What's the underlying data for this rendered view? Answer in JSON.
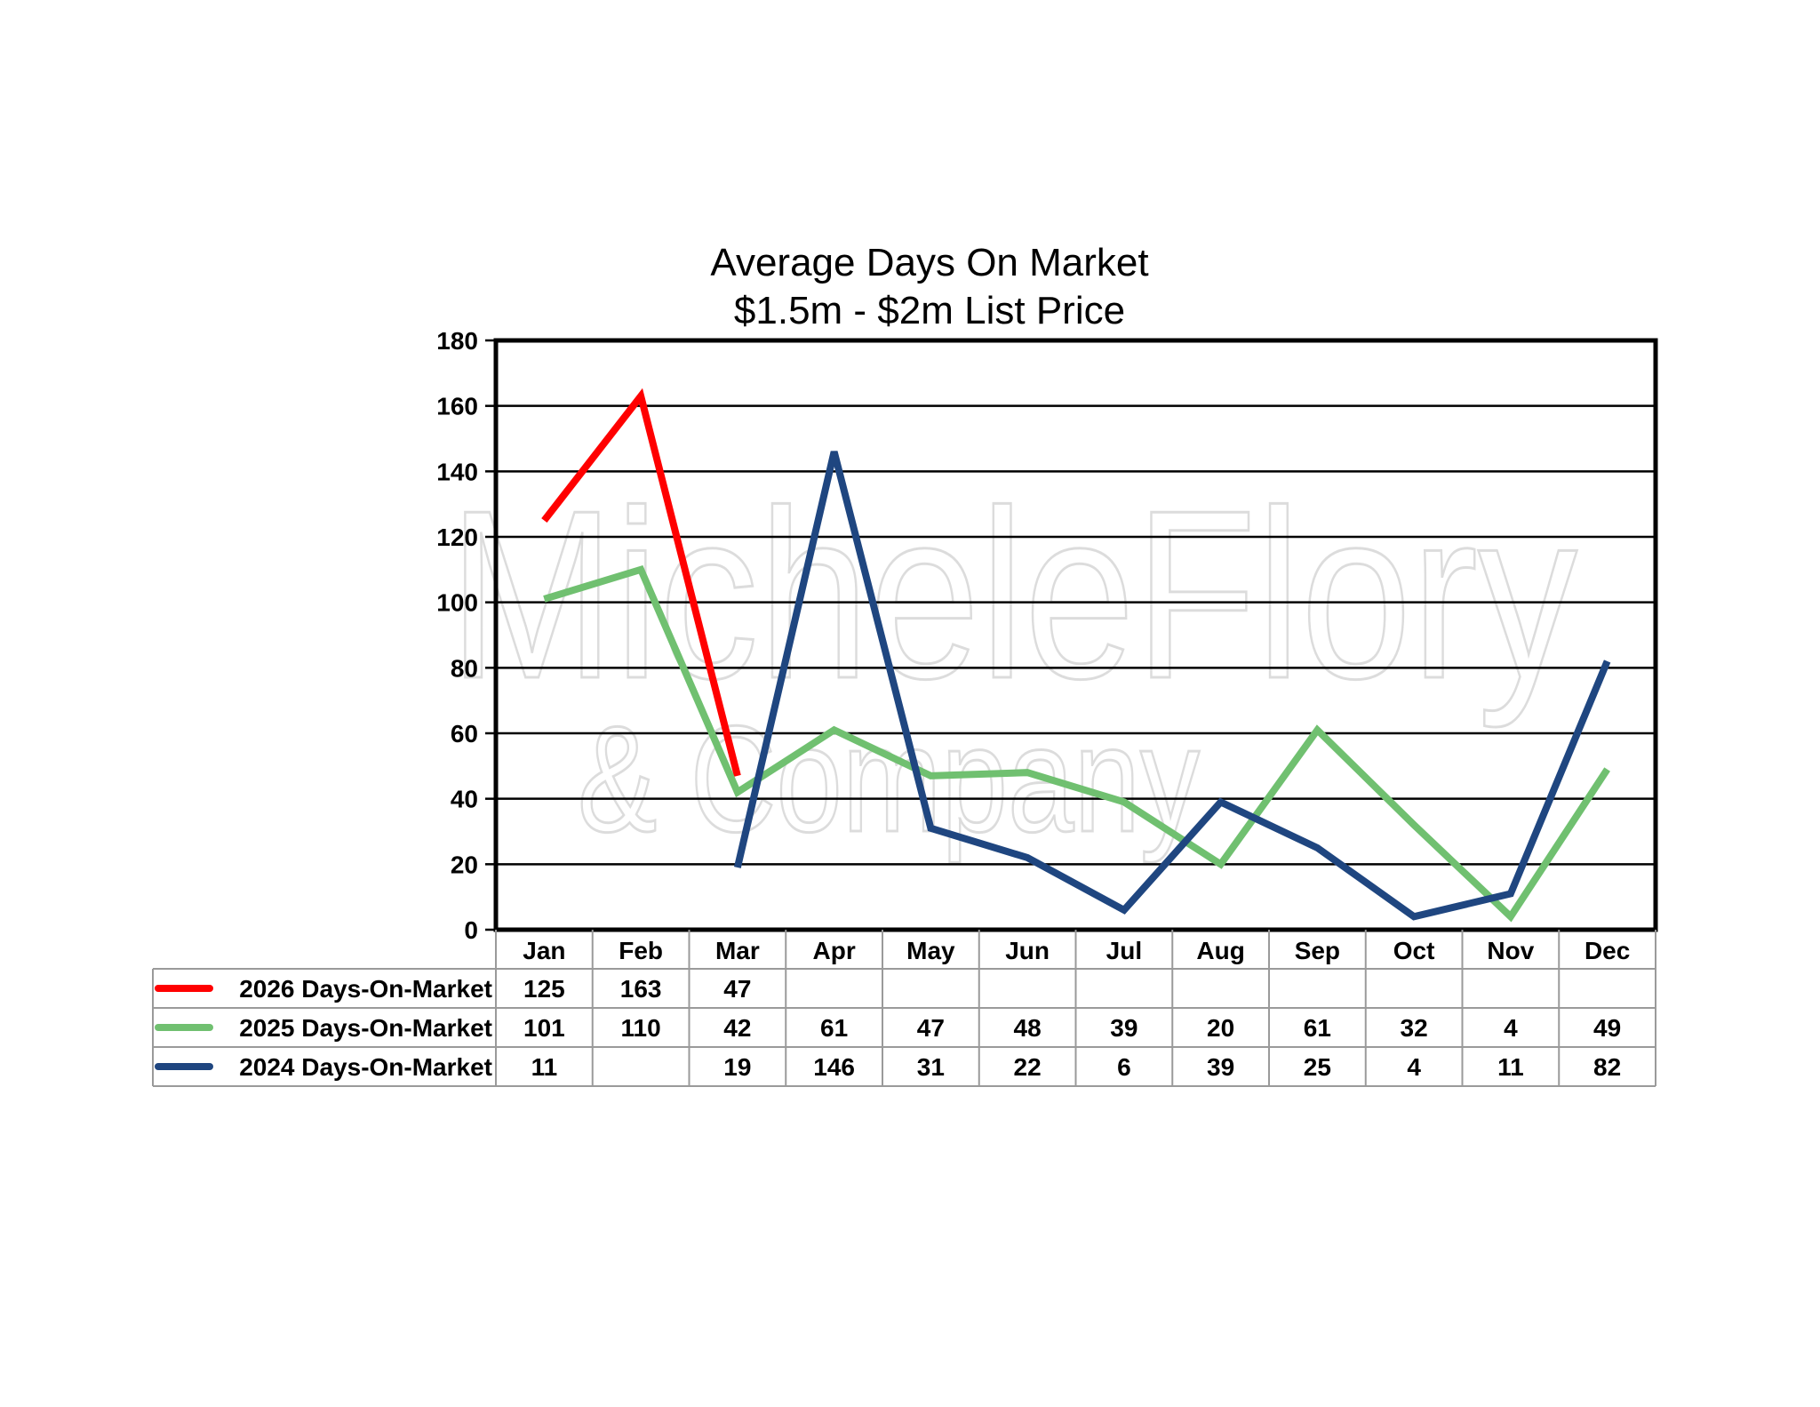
{
  "watermark": {
    "line1": "MicheleFlory",
    "line2": "& Company"
  },
  "chart_data": {
    "type": "line",
    "title": "Average Days On Market",
    "subtitle": "$1.5m - $2m List Price",
    "xlabel": "",
    "ylabel": "",
    "categories": [
      "Jan",
      "Feb",
      "Mar",
      "Apr",
      "May",
      "Jun",
      "Jul",
      "Aug",
      "Sep",
      "Oct",
      "Nov",
      "Dec"
    ],
    "ylim": [
      0,
      180
    ],
    "yticks": [
      0,
      20,
      40,
      60,
      80,
      100,
      120,
      140,
      160,
      180
    ],
    "grid": true,
    "legend": "data-table-left",
    "series": [
      {
        "name": "2026 Days-On-Market",
        "color": "#ff0000",
        "values": [
          125,
          163,
          47,
          null,
          null,
          null,
          null,
          null,
          null,
          null,
          null,
          null
        ]
      },
      {
        "name": "2025 Days-On-Market",
        "color": "#70c070",
        "values": [
          101,
          110,
          42,
          61,
          47,
          48,
          39,
          20,
          61,
          32,
          4,
          49
        ]
      },
      {
        "name": "2024 Days-On-Market",
        "color": "#1f4680",
        "values": [
          11,
          null,
          19,
          146,
          31,
          22,
          6,
          39,
          25,
          4,
          11,
          82
        ]
      }
    ]
  }
}
